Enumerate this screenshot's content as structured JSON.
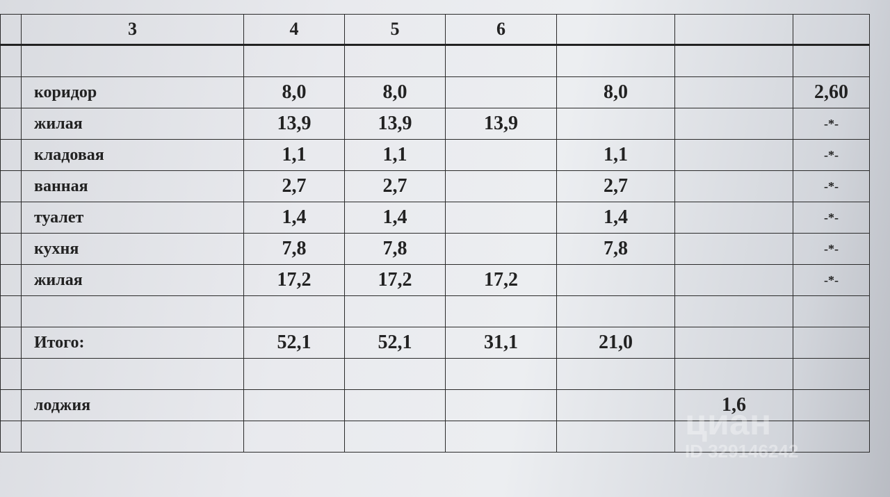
{
  "headers": [
    "",
    "3",
    "4",
    "5",
    "6",
    "",
    "",
    "",
    ""
  ],
  "rows": [
    {
      "label": "",
      "c4": "",
      "c5": "",
      "c6": "",
      "c7": "",
      "c8": "",
      "c9": ""
    },
    {
      "label": "коридор",
      "c4": "8,0",
      "c5": "8,0",
      "c6": "",
      "c7": "8,0",
      "c8": "",
      "c9": "2,60"
    },
    {
      "label": "жилая",
      "c4": "13,9",
      "c5": "13,9",
      "c6": "13,9",
      "c7": "",
      "c8": "",
      "c9": "-*-"
    },
    {
      "label": "кладовая",
      "c4": "1,1",
      "c5": "1,1",
      "c6": "",
      "c7": "1,1",
      "c8": "",
      "c9": "-*-"
    },
    {
      "label": "ванная",
      "c4": "2,7",
      "c5": "2,7",
      "c6": "",
      "c7": "2,7",
      "c8": "",
      "c9": "-*-"
    },
    {
      "label": "туалет",
      "c4": "1,4",
      "c5": "1,4",
      "c6": "",
      "c7": "1,4",
      "c8": "",
      "c9": "-*-"
    },
    {
      "label": "кухня",
      "c4": "7,8",
      "c5": "7,8",
      "c6": "",
      "c7": "7,8",
      "c8": "",
      "c9": "-*-"
    },
    {
      "label": "жилая",
      "c4": "17,2",
      "c5": "17,2",
      "c6": "17,2",
      "c7": "",
      "c8": "",
      "c9": "-*-"
    },
    {
      "label": "",
      "c4": "",
      "c5": "",
      "c6": "",
      "c7": "",
      "c8": "",
      "c9": ""
    },
    {
      "label": "Итого:",
      "c4": "52,1",
      "c5": "52,1",
      "c6": "31,1",
      "c7": "21,0",
      "c8": "",
      "c9": ""
    },
    {
      "label": "",
      "c4": "",
      "c5": "",
      "c6": "",
      "c7": "",
      "c8": "",
      "c9": ""
    },
    {
      "label": "лоджия",
      "c4": "",
      "c5": "",
      "c6": "",
      "c7": "",
      "c8": "1,6",
      "c9": ""
    },
    {
      "label": "",
      "c4": "",
      "c5": "",
      "c6": "",
      "c7": "",
      "c8": "",
      "c9": ""
    }
  ],
  "watermark": {
    "logo": "циан",
    "id": "ID 329146242"
  }
}
